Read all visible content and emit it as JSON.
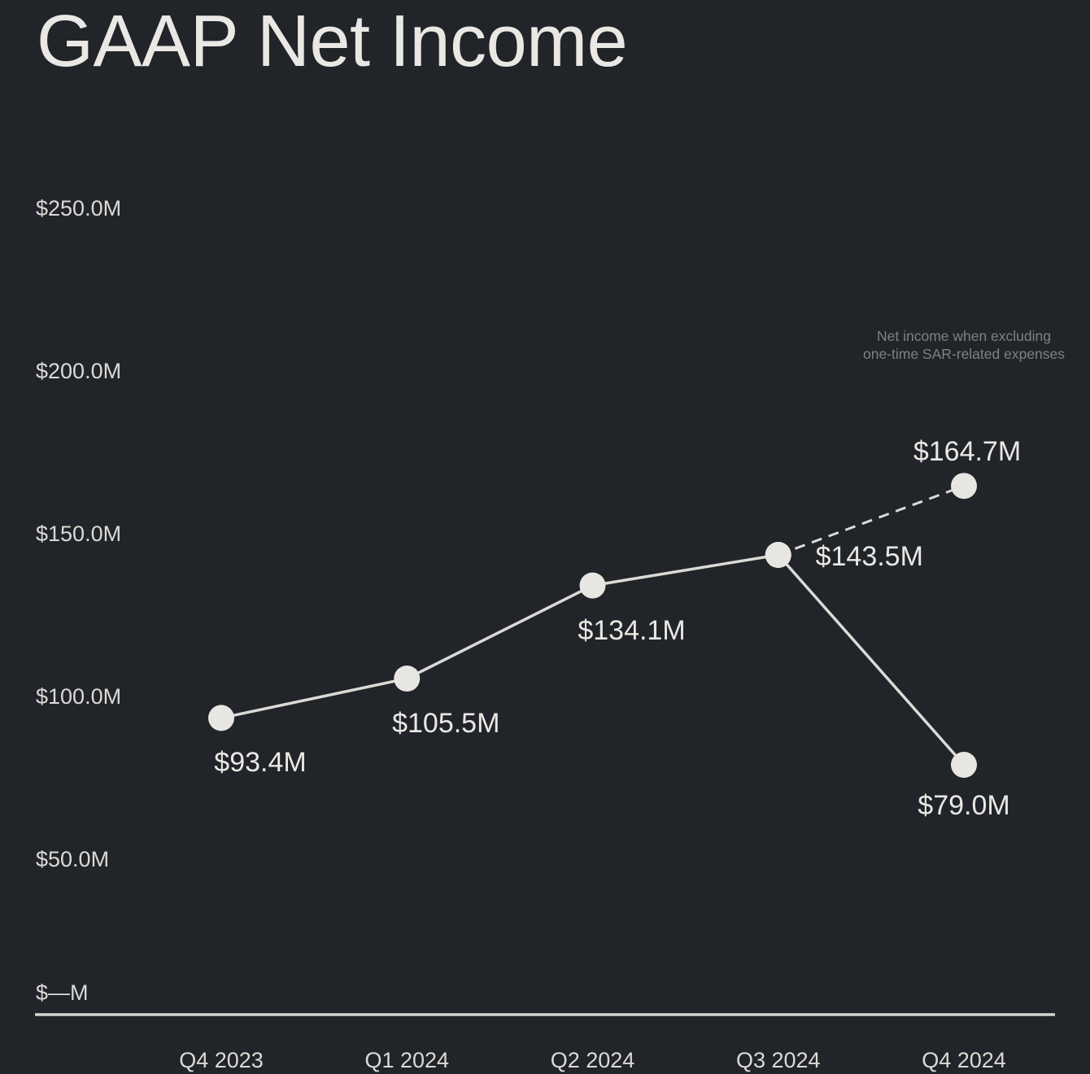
{
  "title": "GAAP Net Income",
  "annotation": {
    "line1": "Net income when excluding",
    "line2": "one-time SAR-related expenses"
  },
  "colors": {
    "background": "#212428",
    "foreground": "#eae8e4",
    "tick_text": "#dcdad6",
    "muted_text": "#7e8184",
    "line": "#dcdad6",
    "dot": "#e8e6e2",
    "axis": "#d6d4d0"
  },
  "chart_data": {
    "type": "line",
    "title": "GAAP Net Income",
    "xlabel": "",
    "ylabel": "",
    "categories": [
      "Q4 2023",
      "Q1 2024",
      "Q2 2024",
      "Q3 2024",
      "Q4 2024"
    ],
    "ylim": [
      0,
      250
    ],
    "grid": false,
    "legend": "none",
    "y_ticks": [
      {
        "label": "$250.0M",
        "value": 250
      },
      {
        "label": "$200.0M",
        "value": 200
      },
      {
        "label": "$150.0M",
        "value": 150
      },
      {
        "label": "$100.0M",
        "value": 100
      },
      {
        "label": "$50.0M",
        "value": 50
      },
      {
        "label": "$—M",
        "value": 0
      }
    ],
    "series": [
      {
        "name": "GAAP net income",
        "style": "solid",
        "values": [
          93.4,
          105.5,
          134.1,
          143.5,
          79.0
        ],
        "points": [
          {
            "category": "Q4 2023",
            "value": 93.4,
            "label": "$93.4M",
            "label_position": "below-right"
          },
          {
            "category": "Q1 2024",
            "value": 105.5,
            "label": "$105.5M",
            "label_position": "below-right"
          },
          {
            "category": "Q2 2024",
            "value": 134.1,
            "label": "$134.1M",
            "label_position": "below-right"
          },
          {
            "category": "Q3 2024",
            "value": 143.5,
            "label": "$143.5M",
            "label_position": "right"
          },
          {
            "category": "Q4 2024",
            "value": 79.0,
            "label": "$79.0M",
            "label_position": "below"
          }
        ]
      },
      {
        "name": "Net income when excluding one-time SAR-related expenses",
        "style": "dashed",
        "values": [
          143.5,
          164.7
        ],
        "points": [
          {
            "category": "Q3 2024",
            "value": 143.5,
            "label": "",
            "label_position": ""
          },
          {
            "category": "Q4 2024",
            "value": 164.7,
            "label": "$164.7M",
            "label_position": "above"
          }
        ]
      }
    ],
    "annotation": "Net income when excluding one-time SAR-related expenses"
  }
}
